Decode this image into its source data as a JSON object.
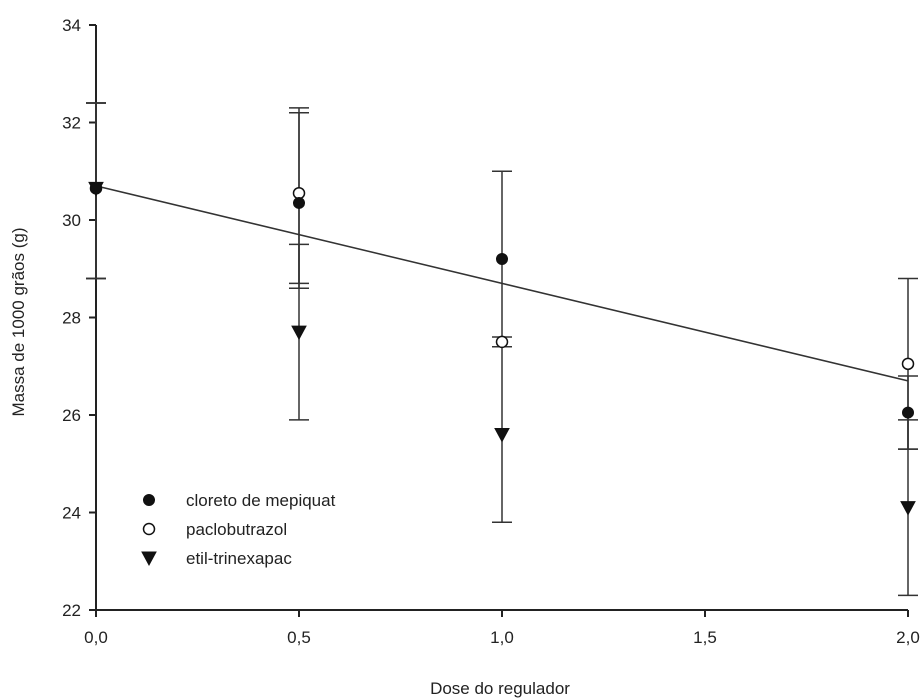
{
  "chart_data": {
    "type": "scatter",
    "xlabel": "Dose do regulador",
    "ylabel": "Massa de 1000 grãos (g)",
    "xlim": [
      0,
      2
    ],
    "ylim": [
      22,
      34
    ],
    "x_ticks": [
      0,
      0.5,
      1,
      1.5,
      2
    ],
    "x_tick_labels": [
      "0,0",
      "0,5",
      "1,0",
      "1,5",
      "2,0"
    ],
    "y_ticks": [
      22,
      24,
      26,
      28,
      30,
      32,
      34
    ],
    "y_tick_labels": [
      "22",
      "24",
      "26",
      "28",
      "30",
      "32",
      "34"
    ],
    "grid": false,
    "legend_position": "lower-left",
    "series": [
      {
        "name": "cloreto de mepiquat",
        "marker": "filled-circle",
        "x": [
          0,
          0.5,
          1,
          2
        ],
        "y": [
          30.65,
          30.35,
          29.2,
          26.05
        ],
        "error_low": [
          28.8,
          28.7,
          27.4,
          25.3
        ],
        "error_high": [
          32.4,
          32.2,
          31.0,
          26.8
        ],
        "color": "#111111"
      },
      {
        "name": "paclobutrazol",
        "marker": "open-circle",
        "x": [
          0,
          0.5,
          1,
          2
        ],
        "y": [
          30.65,
          30.55,
          27.5,
          27.05
        ],
        "error_low": [
          28.8,
          28.6,
          27.4,
          25.3
        ],
        "error_high": [
          32.4,
          32.3,
          27.6,
          28.8
        ],
        "color": "#111111"
      },
      {
        "name": "etil-trinexapac",
        "marker": "filled-down-triangle",
        "x": [
          0,
          0.5,
          1,
          2
        ],
        "y": [
          30.65,
          27.7,
          25.6,
          24.1
        ],
        "error_low": [
          28.8,
          25.9,
          23.8,
          22.3
        ],
        "error_high": [
          32.4,
          29.5,
          27.4,
          25.9
        ],
        "color": "#111111"
      }
    ],
    "fit_line": {
      "x": [
        0,
        2
      ],
      "y": [
        30.7,
        26.7
      ]
    }
  }
}
